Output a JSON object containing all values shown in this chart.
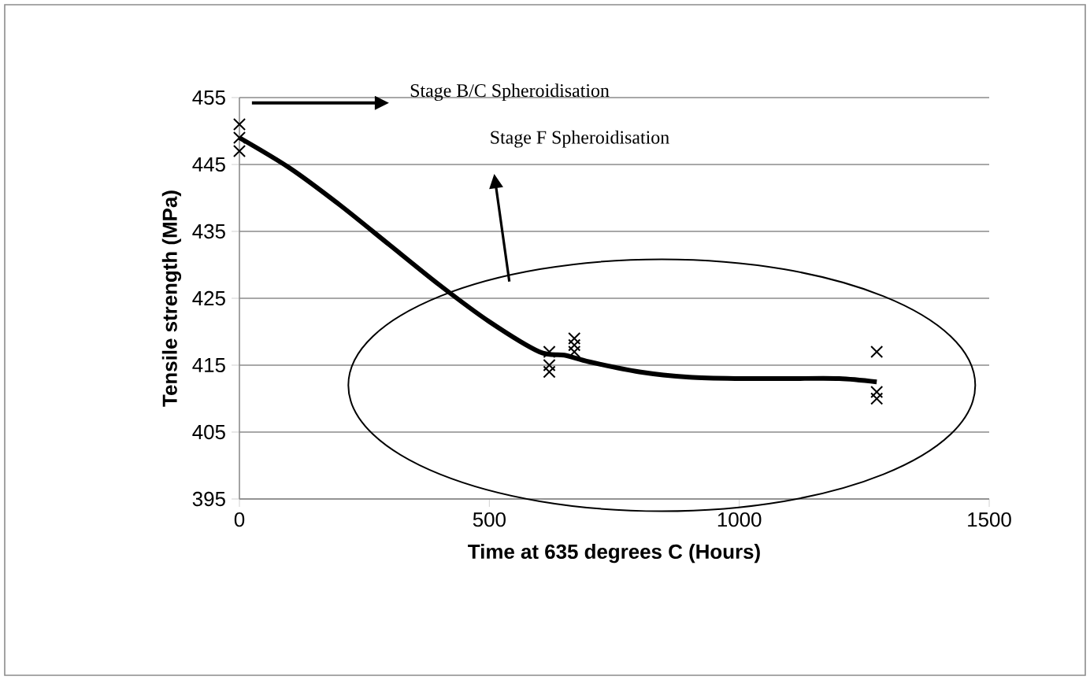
{
  "chart_data": {
    "type": "scatter",
    "xlabel": "Time at 635 degrees C (Hours)",
    "ylabel": "Tensile strength (MPa)",
    "xlim": [
      0,
      1500
    ],
    "xticks": [
      0,
      500,
      1000,
      1500
    ],
    "ylim": [
      395,
      455
    ],
    "yticks": [
      395,
      405,
      415,
      425,
      435,
      445,
      455
    ],
    "grid": "y",
    "marker": "cross",
    "series": [
      {
        "color": "#000000",
        "x": [
          0,
          0,
          0,
          620,
          620,
          620,
          670,
          670,
          670,
          1275,
          1275,
          1275
        ],
        "values": [
          451,
          449,
          447,
          417,
          415,
          414,
          419,
          418,
          417,
          417,
          411,
          410
        ]
      },
      {
        "type": "line",
        "color": "#000000",
        "marker": "none",
        "line_style": "solid",
        "x": [
          0,
          100,
          200,
          300,
          400,
          500,
          600,
          650,
          700,
          800,
          900,
          1000,
          1100,
          1200,
          1275
        ],
        "values": [
          449,
          444.5,
          439,
          433,
          427,
          421.5,
          417,
          416.5,
          415.5,
          414,
          413.2,
          413,
          413,
          413,
          412.5
        ]
      }
    ],
    "annotations": [
      "Stage B/C Spheroidisation",
      "Stage F Spheroidisation"
    ]
  }
}
